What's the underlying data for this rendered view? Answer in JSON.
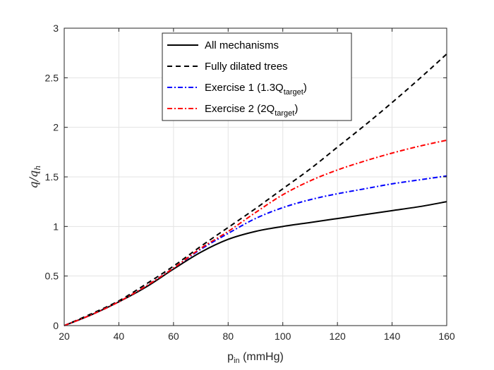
{
  "chart_data": {
    "type": "line",
    "xlabel": "p",
    "xlabel_sub": "in",
    "xlabel_unit": " (mmHg)",
    "ylabel": "q/q",
    "ylabel_sub": "h",
    "xlim": [
      20,
      160
    ],
    "ylim": [
      0,
      3
    ],
    "xticks": [
      20,
      40,
      60,
      80,
      100,
      120,
      140,
      160
    ],
    "yticks": [
      0,
      0.5,
      1,
      1.5,
      2,
      2.5,
      3
    ],
    "xtick_labels": [
      "20",
      "40",
      "60",
      "80",
      "100",
      "120",
      "140",
      "160"
    ],
    "ytick_labels": [
      "0",
      "0.5",
      "1",
      "1.5",
      "2",
      "2.5",
      "3"
    ],
    "grid": true,
    "legend": "top-center",
    "x": [
      20,
      30,
      40,
      50,
      60,
      70,
      80,
      90,
      100,
      110,
      120,
      130,
      140,
      150,
      160
    ],
    "series": [
      {
        "name": "All mechanisms",
        "legend_main": "All mechanisms",
        "legend_sub": "",
        "legend_tail": "",
        "color": "#000000",
        "dash": "",
        "values": [
          0,
          0.11,
          0.24,
          0.39,
          0.57,
          0.74,
          0.87,
          0.95,
          1.0,
          1.04,
          1.08,
          1.12,
          1.16,
          1.2,
          1.25
        ]
      },
      {
        "name": "Fully dilated trees",
        "legend_main": "Fully dilated trees",
        "legend_sub": "",
        "legend_tail": "",
        "color": "#000000",
        "dash": "7,5",
        "values": [
          0,
          0.12,
          0.25,
          0.42,
          0.6,
          0.8,
          0.99,
          1.18,
          1.38,
          1.58,
          1.8,
          2.02,
          2.25,
          2.49,
          2.74
        ]
      },
      {
        "name": "Exercise 1 (1.3Qtarget)",
        "legend_main": "Exercise 1 (1.3Q",
        "legend_sub": "target",
        "legend_tail": ")",
        "color": "#0000ff",
        "dash": "7,3,2,3",
        "values": [
          0,
          0.11,
          0.24,
          0.4,
          0.58,
          0.77,
          0.93,
          1.08,
          1.19,
          1.27,
          1.33,
          1.38,
          1.43,
          1.47,
          1.51
        ]
      },
      {
        "name": "Exercise 2 (2Qtarget)",
        "legend_main": "Exercise 2 (2Q",
        "legend_sub": "target",
        "legend_tail": ")",
        "color": "#ff0000",
        "dash": "7,3,2,3",
        "values": [
          0,
          0.11,
          0.24,
          0.4,
          0.58,
          0.78,
          0.95,
          1.14,
          1.32,
          1.46,
          1.57,
          1.66,
          1.74,
          1.81,
          1.87
        ]
      }
    ]
  }
}
